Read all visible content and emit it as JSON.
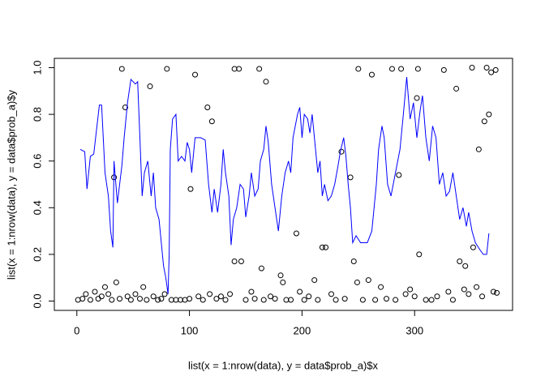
{
  "chart_data": {
    "type": "scatter",
    "x_label": "list(x = 1:nrow(data), y = data$prob_a)$x",
    "y_label": "list(x = 1:nrow(data), y = data$prob_a)$y",
    "xlim": [
      -20,
      387
    ],
    "ylim": [
      -0.04,
      1.04
    ],
    "xticks": [
      0,
      100,
      200,
      300
    ],
    "yticks": [
      {
        "value": 0,
        "label": "0.0"
      },
      {
        "value": 0.2,
        "label": "0.2"
      },
      {
        "value": 0.4,
        "label": "0.4"
      },
      {
        "value": 0.6,
        "label": "0.6"
      },
      {
        "value": 0.8,
        "label": "0.8"
      },
      {
        "value": 1,
        "label": "1.0"
      }
    ],
    "series": [
      {
        "type": "scatter",
        "color": "#000000",
        "x": [
          40,
          80,
          105,
          140,
          144,
          162,
          250,
          262,
          280,
          288,
          303,
          326,
          351,
          364,
          368,
          372,
          33,
          43,
          65,
          101,
          116,
          120,
          168,
          195,
          218,
          221,
          235,
          243,
          246,
          286,
          302,
          304,
          337,
          340,
          345,
          352,
          357,
          362,
          366,
          140,
          146,
          164,
          181,
          183,
          211,
          249,
          259,
          1,
          5,
          8,
          12,
          16,
          19,
          22,
          25,
          28,
          31,
          35,
          38,
          45,
          48,
          52,
          56,
          59,
          62,
          68,
          72,
          75,
          78,
          84,
          88,
          92,
          96,
          100,
          108,
          112,
          118,
          124,
          128,
          132,
          136,
          150,
          155,
          158,
          166,
          172,
          176,
          186,
          190,
          198,
          202,
          206,
          214,
          226,
          230,
          238,
          254,
          265,
          270,
          275,
          283,
          292,
          296,
          300,
          310,
          315,
          320,
          330,
          334,
          344,
          348,
          355,
          360,
          370,
          373
        ],
        "values": [
          0.995,
          0.995,
          0.97,
          0.995,
          0.995,
          0.995,
          0.995,
          0.97,
          0.995,
          0.995,
          0.995,
          0.99,
          1.0,
          1.0,
          0.98,
          0.99,
          0.53,
          0.83,
          0.92,
          0.48,
          0.83,
          0.77,
          0.94,
          0.29,
          0.23,
          0.23,
          0.64,
          0.53,
          0.17,
          0.54,
          0.87,
          0.2,
          0.91,
          0.17,
          0.15,
          0.23,
          0.65,
          0.77,
          0.8,
          0.17,
          0.17,
          0.14,
          0.11,
          0.08,
          0.09,
          0.08,
          0.09,
          0.005,
          0.01,
          0.03,
          0.005,
          0.04,
          0.01,
          0.02,
          0.06,
          0.03,
          0.005,
          0.08,
          0.01,
          0.02,
          0.005,
          0.03,
          0.01,
          0.06,
          0.005,
          0.02,
          0.005,
          0.01,
          0.03,
          0.005,
          0.005,
          0.005,
          0.005,
          0.01,
          0.02,
          0.005,
          0.03,
          0.01,
          0.02,
          0.005,
          0.03,
          0.005,
          0.04,
          0.01,
          0.005,
          0.02,
          0.01,
          0.005,
          0.005,
          0.04,
          0.005,
          0.02,
          0.005,
          0.03,
          0.005,
          0.01,
          0.005,
          0.005,
          0.06,
          0.01,
          0.005,
          0.03,
          0.05,
          0.02,
          0.005,
          0.005,
          0.02,
          0.04,
          0.005,
          0.05,
          0.03,
          0.06,
          0.02,
          0.04,
          0.035
        ]
      },
      {
        "type": "line",
        "color": "#0000ff",
        "x": [
          3,
          7,
          9,
          12,
          15,
          20,
          22,
          25,
          28,
          30,
          32,
          33,
          36,
          38,
          40,
          42,
          45,
          48,
          52,
          54,
          56,
          58,
          60,
          63,
          66,
          68,
          70,
          73,
          75,
          77,
          79,
          81,
          82,
          83,
          85,
          88,
          90,
          93,
          96,
          98,
          100,
          102,
          105,
          110,
          114,
          117,
          120,
          122,
          125,
          128,
          130,
          132,
          135,
          137,
          139,
          142,
          145,
          148,
          150,
          153,
          155,
          158,
          161,
          163,
          166,
          168,
          170,
          173,
          176,
          179,
          182,
          185,
          188,
          190,
          192,
          194,
          196,
          198,
          200,
          202,
          205,
          207,
          209,
          212,
          214,
          216,
          218,
          220,
          223,
          226,
          229,
          232,
          234,
          237,
          239,
          241,
          243,
          245,
          248,
          252,
          258,
          262,
          264,
          266,
          268,
          271,
          273,
          276,
          279,
          283,
          287,
          290,
          293,
          296,
          299,
          302,
          305,
          307,
          310,
          313,
          316,
          319,
          322,
          325,
          328,
          331,
          334,
          337,
          340,
          343,
          346,
          348,
          351,
          354,
          358,
          361,
          364,
          366
        ],
        "values": [
          0.65,
          0.64,
          0.48,
          0.62,
          0.63,
          0.84,
          0.84,
          0.55,
          0.45,
          0.3,
          0.23,
          0.6,
          0.42,
          0.5,
          0.58,
          0.7,
          0.85,
          0.95,
          0.93,
          0.94,
          0.7,
          0.45,
          0.55,
          0.6,
          0.45,
          0.55,
          0.4,
          0.35,
          0.25,
          0.15,
          0.1,
          0.03,
          0.2,
          0.65,
          0.78,
          0.8,
          0.6,
          0.62,
          0.6,
          0.68,
          0.65,
          0.55,
          0.7,
          0.7,
          0.69,
          0.5,
          0.38,
          0.48,
          0.38,
          0.5,
          0.65,
          0.55,
          0.45,
          0.24,
          0.35,
          0.4,
          0.5,
          0.48,
          0.36,
          0.45,
          0.55,
          0.45,
          0.48,
          0.6,
          0.65,
          0.75,
          0.68,
          0.5,
          0.4,
          0.3,
          0.45,
          0.55,
          0.6,
          0.55,
          0.7,
          0.75,
          0.8,
          0.83,
          0.7,
          0.8,
          0.78,
          0.72,
          0.8,
          0.65,
          0.55,
          0.6,
          0.45,
          0.5,
          0.43,
          0.45,
          0.5,
          0.58,
          0.64,
          0.7,
          0.62,
          0.5,
          0.4,
          0.25,
          0.28,
          0.25,
          0.25,
          0.3,
          0.4,
          0.5,
          0.65,
          0.75,
          0.7,
          0.5,
          0.45,
          0.55,
          0.65,
          0.8,
          0.96,
          0.78,
          0.85,
          0.7,
          0.82,
          0.88,
          0.7,
          0.6,
          0.75,
          0.7,
          0.5,
          0.55,
          0.45,
          0.47,
          0.55,
          0.45,
          0.35,
          0.4,
          0.32,
          0.38,
          0.3,
          0.25,
          0.22,
          0.2,
          0.2,
          0.29
        ]
      }
    ]
  }
}
